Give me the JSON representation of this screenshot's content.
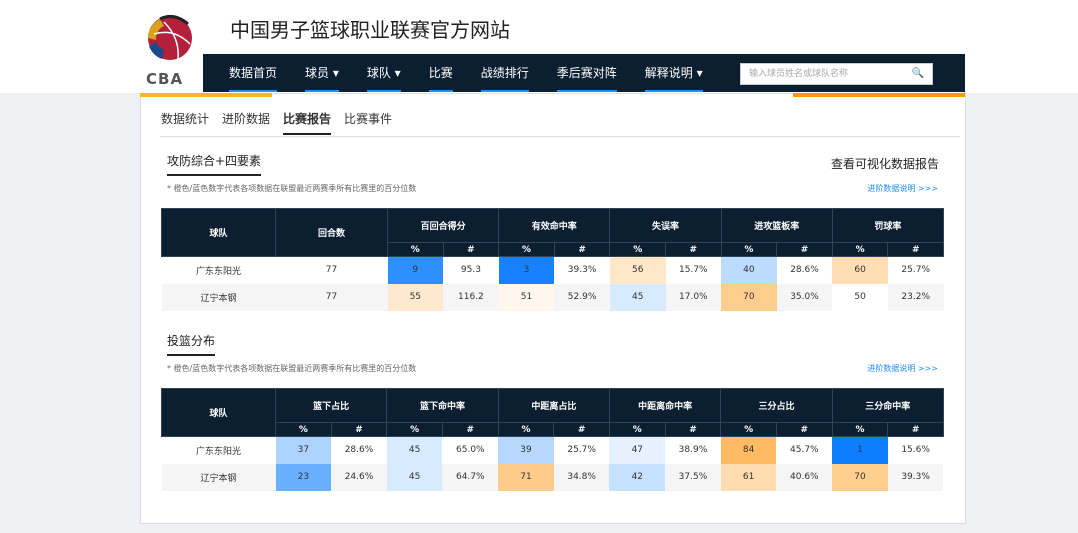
{
  "header": {
    "logo_text": "CBA",
    "site_title": "中国男子篮球职业联赛官方网站"
  },
  "nav": {
    "items": [
      "数据首页",
      "球员 ▾",
      "球队 ▾",
      "比赛",
      "战绩排行",
      "季后赛对阵",
      "解释说明 ▾"
    ],
    "search_placeholder": "输入球员姓名或球队名称",
    "search_icon": "🔍"
  },
  "tabs": [
    "数据统计",
    "进阶数据",
    "比赛报告",
    "比赛事件"
  ],
  "active_tab": 2,
  "view_report": "查看可视化数据报告",
  "colors": {
    "low": "#0a7cff",
    "high": "#ffa83c",
    "nav": "#0b1f30"
  },
  "sections": [
    {
      "title": "攻防综合+四要素",
      "note": "* 橙色/蓝色数字代表各项数据在联盟最近两赛季所有比赛里的百分位数",
      "link": "进阶数据说明 >>>",
      "team_header": "球队",
      "extra_header": "回合数",
      "groups": [
        "百回合得分",
        "有效命中率",
        "失误率",
        "进攻篮板率",
        "罚球率"
      ],
      "sub": [
        "%",
        "#"
      ],
      "rows": [
        {
          "team": "广东东阳光",
          "extra": "77",
          "cells": [
            [
              "9",
              "95.3"
            ],
            [
              "3",
              "39.3%"
            ],
            [
              "56",
              "15.7%"
            ],
            [
              "40",
              "28.6%"
            ],
            [
              "60",
              "25.7%"
            ]
          ]
        },
        {
          "team": "辽宁本钢",
          "extra": "77",
          "cells": [
            [
              "55",
              "116.2"
            ],
            [
              "51",
              "52.9%"
            ],
            [
              "45",
              "17.0%"
            ],
            [
              "70",
              "35.0%"
            ],
            [
              "50",
              "23.2%"
            ]
          ]
        }
      ]
    },
    {
      "title": "投篮分布",
      "note": "* 橙色/蓝色数字代表各项数据在联盟最近两赛季所有比赛里的百分位数",
      "link": "进阶数据说明 >>>",
      "team_header": "球队",
      "groups": [
        "篮下占比",
        "篮下命中率",
        "中距离占比",
        "中距离命中率",
        "三分占比",
        "三分命中率"
      ],
      "sub": [
        "%",
        "#"
      ],
      "rows": [
        {
          "team": "广东东阳光",
          "cells": [
            [
              "37",
              "28.6%"
            ],
            [
              "45",
              "65.0%"
            ],
            [
              "39",
              "25.7%"
            ],
            [
              "47",
              "38.9%"
            ],
            [
              "84",
              "45.7%"
            ],
            [
              "1",
              "15.6%"
            ]
          ]
        },
        {
          "team": "辽宁本钢",
          "cells": [
            [
              "23",
              "24.6%"
            ],
            [
              "45",
              "64.7%"
            ],
            [
              "71",
              "34.8%"
            ],
            [
              "42",
              "37.5%"
            ],
            [
              "61",
              "40.6%"
            ],
            [
              "70",
              "39.3%"
            ]
          ]
        }
      ]
    }
  ]
}
